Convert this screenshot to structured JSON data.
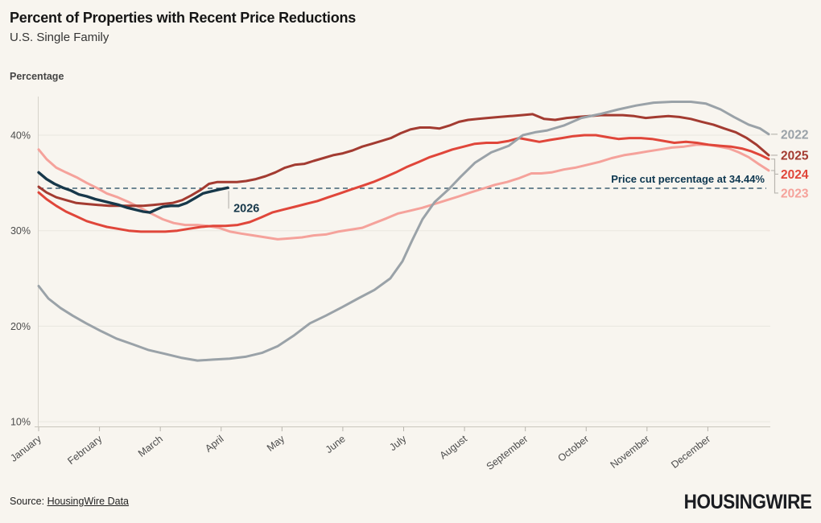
{
  "chart_data": {
    "type": "line",
    "title": "Percent of Properties with Recent Price Reductions",
    "subtitle": "U.S. Single Family",
    "ylabel": "Percentage",
    "ylim": [
      9.5,
      45.5
    ],
    "y_ticks": [
      40,
      30,
      20,
      10
    ],
    "y_tick_suffix": "%",
    "grid": "horizontal",
    "legend_position": "right-edge",
    "x_months": [
      "January",
      "February",
      "March",
      "April",
      "May",
      "June",
      "July",
      "August",
      "September",
      "October",
      "November",
      "December"
    ],
    "ref_line": {
      "value": 34.44,
      "label": "Price cut percentage at 34.44%",
      "color": "#3f6174",
      "label_color": "#0d3750"
    },
    "series": [
      {
        "name": "2023",
        "color": "#f5a29b",
        "end_labeled": true,
        "points": [
          [
            0,
            38.5
          ],
          [
            0.13,
            37.5
          ],
          [
            0.29,
            36.6
          ],
          [
            0.45,
            36.1
          ],
          [
            0.62,
            35.6
          ],
          [
            0.79,
            35.0
          ],
          [
            0.95,
            34.5
          ],
          [
            1.12,
            33.9
          ],
          [
            1.3,
            33.5
          ],
          [
            1.48,
            33.0
          ],
          [
            1.67,
            32.4
          ],
          [
            1.85,
            31.8
          ],
          [
            2.04,
            31.2
          ],
          [
            2.22,
            30.8
          ],
          [
            2.41,
            30.6
          ],
          [
            2.61,
            30.6
          ],
          [
            2.78,
            30.5
          ],
          [
            2.96,
            30.3
          ],
          [
            3.15,
            29.9
          ],
          [
            3.33,
            29.7
          ],
          [
            3.53,
            29.5
          ],
          [
            3.73,
            29.3
          ],
          [
            3.93,
            29.1
          ],
          [
            4.13,
            29.2
          ],
          [
            4.33,
            29.3
          ],
          [
            4.52,
            29.5
          ],
          [
            4.72,
            29.6
          ],
          [
            4.92,
            29.9
          ],
          [
            5.12,
            30.1
          ],
          [
            5.32,
            30.3
          ],
          [
            5.52,
            30.8
          ],
          [
            5.72,
            31.3
          ],
          [
            5.91,
            31.8
          ],
          [
            6.11,
            32.1
          ],
          [
            6.31,
            32.4
          ],
          [
            6.51,
            32.8
          ],
          [
            6.71,
            33.2
          ],
          [
            6.91,
            33.6
          ],
          [
            7.1,
            34.0
          ],
          [
            7.3,
            34.4
          ],
          [
            7.5,
            34.8
          ],
          [
            7.7,
            35.1
          ],
          [
            7.9,
            35.5
          ],
          [
            8.1,
            36.0
          ],
          [
            8.26,
            36.0
          ],
          [
            8.43,
            36.1
          ],
          [
            8.63,
            36.4
          ],
          [
            8.82,
            36.6
          ],
          [
            9.02,
            36.9
          ],
          [
            9.22,
            37.2
          ],
          [
            9.42,
            37.6
          ],
          [
            9.62,
            37.9
          ],
          [
            9.82,
            38.1
          ],
          [
            10.01,
            38.3
          ],
          [
            10.21,
            38.5
          ],
          [
            10.41,
            38.7
          ],
          [
            10.61,
            38.8
          ],
          [
            10.81,
            39.0
          ],
          [
            11.01,
            39.0
          ],
          [
            11.18,
            38.8
          ],
          [
            11.35,
            38.6
          ],
          [
            11.51,
            38.2
          ],
          [
            11.67,
            37.7
          ],
          [
            11.83,
            37.0
          ],
          [
            12,
            36.3
          ]
        ]
      },
      {
        "name": "2024",
        "color": "#e0463a",
        "end_labeled": true,
        "points": [
          [
            0,
            34.0
          ],
          [
            0.13,
            33.3
          ],
          [
            0.29,
            32.6
          ],
          [
            0.45,
            32.0
          ],
          [
            0.62,
            31.5
          ],
          [
            0.79,
            31.0
          ],
          [
            0.95,
            30.7
          ],
          [
            1.12,
            30.4
          ],
          [
            1.3,
            30.2
          ],
          [
            1.48,
            30.0
          ],
          [
            1.68,
            29.9
          ],
          [
            1.88,
            29.9
          ],
          [
            2.08,
            29.9
          ],
          [
            2.28,
            30.0
          ],
          [
            2.47,
            30.2
          ],
          [
            2.67,
            30.4
          ],
          [
            2.87,
            30.5
          ],
          [
            3.07,
            30.5
          ],
          [
            3.27,
            30.6
          ],
          [
            3.47,
            30.9
          ],
          [
            3.66,
            31.4
          ],
          [
            3.84,
            31.9
          ],
          [
            4.02,
            32.2
          ],
          [
            4.21,
            32.5
          ],
          [
            4.39,
            32.8
          ],
          [
            4.58,
            33.1
          ],
          [
            4.76,
            33.5
          ],
          [
            4.95,
            33.9
          ],
          [
            5.13,
            34.3
          ],
          [
            5.32,
            34.7
          ],
          [
            5.5,
            35.1
          ],
          [
            5.69,
            35.6
          ],
          [
            5.87,
            36.1
          ],
          [
            6.06,
            36.7
          ],
          [
            6.25,
            37.2
          ],
          [
            6.43,
            37.7
          ],
          [
            6.62,
            38.1
          ],
          [
            6.8,
            38.5
          ],
          [
            6.99,
            38.8
          ],
          [
            7.17,
            39.1
          ],
          [
            7.36,
            39.2
          ],
          [
            7.54,
            39.2
          ],
          [
            7.73,
            39.4
          ],
          [
            7.9,
            39.7
          ],
          [
            8.06,
            39.5
          ],
          [
            8.23,
            39.3
          ],
          [
            8.41,
            39.5
          ],
          [
            8.6,
            39.7
          ],
          [
            8.79,
            39.9
          ],
          [
            8.97,
            40.0
          ],
          [
            9.16,
            40.0
          ],
          [
            9.34,
            39.8
          ],
          [
            9.53,
            39.6
          ],
          [
            9.71,
            39.7
          ],
          [
            9.9,
            39.7
          ],
          [
            10.08,
            39.6
          ],
          [
            10.27,
            39.4
          ],
          [
            10.45,
            39.2
          ],
          [
            10.64,
            39.3
          ],
          [
            10.82,
            39.2
          ],
          [
            11.01,
            39.0
          ],
          [
            11.19,
            38.9
          ],
          [
            11.38,
            38.8
          ],
          [
            11.56,
            38.6
          ],
          [
            11.72,
            38.3
          ],
          [
            11.87,
            37.9
          ],
          [
            12,
            37.5
          ]
        ]
      },
      {
        "name": "2025",
        "color": "#a33b31",
        "end_labeled": true,
        "points": [
          [
            0,
            34.6
          ],
          [
            0.13,
            34.0
          ],
          [
            0.29,
            33.5
          ],
          [
            0.45,
            33.2
          ],
          [
            0.62,
            32.9
          ],
          [
            0.79,
            32.8
          ],
          [
            0.98,
            32.7
          ],
          [
            1.16,
            32.6
          ],
          [
            1.35,
            32.6
          ],
          [
            1.53,
            32.6
          ],
          [
            1.72,
            32.6
          ],
          [
            1.88,
            32.7
          ],
          [
            2.04,
            32.8
          ],
          [
            2.2,
            32.9
          ],
          [
            2.36,
            33.2
          ],
          [
            2.51,
            33.7
          ],
          [
            2.67,
            34.3
          ],
          [
            2.8,
            34.9
          ],
          [
            2.94,
            35.1
          ],
          [
            3.1,
            35.1
          ],
          [
            3.26,
            35.1
          ],
          [
            3.41,
            35.2
          ],
          [
            3.57,
            35.4
          ],
          [
            3.73,
            35.7
          ],
          [
            3.89,
            36.1
          ],
          [
            4.05,
            36.6
          ],
          [
            4.21,
            36.9
          ],
          [
            4.37,
            37.0
          ],
          [
            4.52,
            37.3
          ],
          [
            4.68,
            37.6
          ],
          [
            4.84,
            37.9
          ],
          [
            5,
            38.1
          ],
          [
            5.16,
            38.4
          ],
          [
            5.32,
            38.8
          ],
          [
            5.48,
            39.1
          ],
          [
            5.64,
            39.4
          ],
          [
            5.79,
            39.7
          ],
          [
            5.95,
            40.2
          ],
          [
            6.11,
            40.6
          ],
          [
            6.27,
            40.8
          ],
          [
            6.43,
            40.8
          ],
          [
            6.59,
            40.7
          ],
          [
            6.75,
            41.0
          ],
          [
            6.91,
            41.4
          ],
          [
            7.06,
            41.6
          ],
          [
            7.22,
            41.7
          ],
          [
            7.38,
            41.8
          ],
          [
            7.57,
            41.9
          ],
          [
            7.75,
            42.0
          ],
          [
            7.94,
            42.1
          ],
          [
            8.12,
            42.2
          ],
          [
            8.31,
            41.7
          ],
          [
            8.49,
            41.6
          ],
          [
            8.68,
            41.8
          ],
          [
            8.86,
            41.9
          ],
          [
            9.05,
            42.0
          ],
          [
            9.24,
            42.1
          ],
          [
            9.42,
            42.1
          ],
          [
            9.6,
            42.1
          ],
          [
            9.79,
            42.0
          ],
          [
            9.98,
            41.8
          ],
          [
            10.16,
            41.9
          ],
          [
            10.35,
            42.0
          ],
          [
            10.53,
            41.9
          ],
          [
            10.72,
            41.7
          ],
          [
            10.9,
            41.4
          ],
          [
            11.09,
            41.1
          ],
          [
            11.27,
            40.7
          ],
          [
            11.46,
            40.3
          ],
          [
            11.64,
            39.7
          ],
          [
            11.8,
            39.0
          ],
          [
            11.91,
            38.4
          ],
          [
            12,
            37.9
          ]
        ]
      },
      {
        "name": "2022",
        "color": "#9aa2a8",
        "end_labeled": true,
        "points": [
          [
            0,
            24.2
          ],
          [
            0.16,
            22.9
          ],
          [
            0.36,
            21.9
          ],
          [
            0.56,
            21.1
          ],
          [
            0.78,
            20.3
          ],
          [
            1.02,
            19.5
          ],
          [
            1.28,
            18.7
          ],
          [
            1.55,
            18.1
          ],
          [
            1.81,
            17.5
          ],
          [
            2.08,
            17.1
          ],
          [
            2.34,
            16.7
          ],
          [
            2.61,
            16.4
          ],
          [
            2.87,
            16.5
          ],
          [
            3.14,
            16.6
          ],
          [
            3.4,
            16.8
          ],
          [
            3.67,
            17.2
          ],
          [
            3.93,
            17.9
          ],
          [
            4.19,
            19.0
          ],
          [
            4.46,
            20.3
          ],
          [
            4.72,
            21.1
          ],
          [
            4.99,
            22.0
          ],
          [
            5.25,
            22.9
          ],
          [
            5.52,
            23.8
          ],
          [
            5.78,
            25.0
          ],
          [
            5.98,
            26.8
          ],
          [
            6.14,
            29.0
          ],
          [
            6.31,
            31.2
          ],
          [
            6.51,
            33.0
          ],
          [
            6.75,
            34.4
          ],
          [
            6.93,
            35.6
          ],
          [
            7.17,
            37.1
          ],
          [
            7.44,
            38.2
          ],
          [
            7.73,
            38.9
          ],
          [
            7.96,
            40.0
          ],
          [
            8.16,
            40.3
          ],
          [
            8.36,
            40.5
          ],
          [
            8.63,
            41.0
          ],
          [
            8.92,
            41.8
          ],
          [
            9.22,
            42.2
          ],
          [
            9.53,
            42.7
          ],
          [
            9.82,
            43.1
          ],
          [
            10.11,
            43.4
          ],
          [
            10.41,
            43.5
          ],
          [
            10.72,
            43.5
          ],
          [
            10.97,
            43.3
          ],
          [
            11.21,
            42.7
          ],
          [
            11.43,
            41.9
          ],
          [
            11.67,
            41.1
          ],
          [
            11.86,
            40.7
          ],
          [
            12,
            40.1
          ]
        ]
      },
      {
        "name": "2026",
        "color": "#17384a",
        "end_labeled": false,
        "inline_label": true,
        "points": [
          [
            0,
            36.1
          ],
          [
            0.13,
            35.4
          ],
          [
            0.26,
            34.9
          ],
          [
            0.4,
            34.5
          ],
          [
            0.53,
            34.2
          ],
          [
            0.66,
            33.8
          ],
          [
            0.79,
            33.6
          ],
          [
            0.93,
            33.3
          ],
          [
            1.06,
            33.1
          ],
          [
            1.19,
            32.9
          ],
          [
            1.32,
            32.7
          ],
          [
            1.46,
            32.4
          ],
          [
            1.59,
            32.2
          ],
          [
            1.72,
            32.0
          ],
          [
            1.83,
            31.9
          ],
          [
            1.93,
            32.2
          ],
          [
            2.04,
            32.5
          ],
          [
            2.17,
            32.6
          ],
          [
            2.3,
            32.6
          ],
          [
            2.43,
            32.9
          ],
          [
            2.57,
            33.4
          ],
          [
            2.7,
            33.9
          ],
          [
            2.83,
            34.1
          ],
          [
            2.96,
            34.3
          ],
          [
            3.11,
            34.5
          ]
        ]
      }
    ]
  },
  "footer": {
    "source_label": "Source:",
    "source_link_text": "HousingWire Data",
    "brand": "HOUSINGWIRE"
  }
}
